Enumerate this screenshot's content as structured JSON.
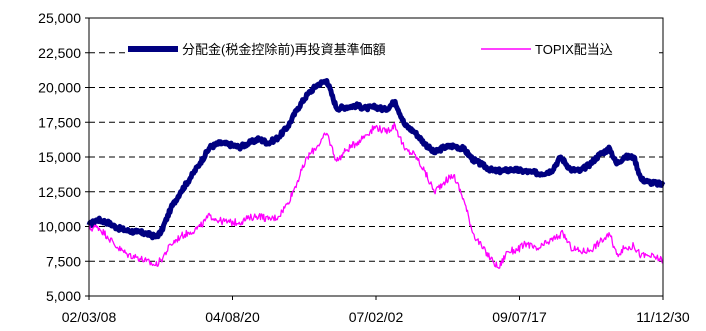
{
  "chart_data": {
    "type": "line",
    "ylim": [
      5000,
      25000
    ],
    "y_ticks": [
      "5,000",
      "7,500",
      "10,000",
      "12,500",
      "15,000",
      "17,500",
      "20,000",
      "22,500",
      "25,000"
    ],
    "y_tick_values": [
      5000,
      7500,
      10000,
      12500,
      15000,
      17500,
      20000,
      22500,
      25000
    ],
    "x_ticks": [
      "02/03/08",
      "04/08/20",
      "07/02/02",
      "09/07/17",
      "11/12/30"
    ],
    "xlim": [
      "2002-03-08",
      "2011-12-30"
    ],
    "grid": "horizontal dashed",
    "legend_position": "top",
    "series": [
      {
        "name": "分配金(税金控除前)再投資基準価額",
        "color": "#000080",
        "points": [
          [
            "2002-03-08",
            10100
          ],
          [
            "2002-05-01",
            10500
          ],
          [
            "2002-07-01",
            10300
          ],
          [
            "2002-09-01",
            9900
          ],
          [
            "2002-11-01",
            9700
          ],
          [
            "2003-01-01",
            9600
          ],
          [
            "2003-03-01",
            9500
          ],
          [
            "2003-04-28",
            9250
          ],
          [
            "2003-06-01",
            9600
          ],
          [
            "2003-08-01",
            11300
          ],
          [
            "2003-10-01",
            12500
          ],
          [
            "2003-12-01",
            13500
          ],
          [
            "2004-02-01",
            14600
          ],
          [
            "2004-04-01",
            15700
          ],
          [
            "2004-06-01",
            16000
          ],
          [
            "2004-08-01",
            15900
          ],
          [
            "2004-10-01",
            15700
          ],
          [
            "2004-12-01",
            16000
          ],
          [
            "2005-02-01",
            16300
          ],
          [
            "2005-04-01",
            16000
          ],
          [
            "2005-06-01",
            16400
          ],
          [
            "2005-08-01",
            17200
          ],
          [
            "2005-10-01",
            18500
          ],
          [
            "2005-12-01",
            19500
          ],
          [
            "2006-02-01",
            20200
          ],
          [
            "2006-04-01",
            20500
          ],
          [
            "2006-06-01",
            18500
          ],
          [
            "2006-08-01",
            18600
          ],
          [
            "2006-10-01",
            18700
          ],
          [
            "2006-12-01",
            18500
          ],
          [
            "2007-02-01",
            18600
          ],
          [
            "2007-04-01",
            18400
          ],
          [
            "2007-06-01",
            19000
          ],
          [
            "2007-08-01",
            17300
          ],
          [
            "2007-10-01",
            16800
          ],
          [
            "2007-12-01",
            16000
          ],
          [
            "2008-02-01",
            15300
          ],
          [
            "2008-04-01",
            15700
          ],
          [
            "2008-06-01",
            15800
          ],
          [
            "2008-08-01",
            15600
          ],
          [
            "2008-10-01",
            14800
          ],
          [
            "2008-12-01",
            14400
          ],
          [
            "2009-02-01",
            14000
          ],
          [
            "2009-04-01",
            14000
          ],
          [
            "2009-06-01",
            14100
          ],
          [
            "2009-08-01",
            14000
          ],
          [
            "2009-10-01",
            13900
          ],
          [
            "2009-12-01",
            13800
          ],
          [
            "2010-02-01",
            14000
          ],
          [
            "2010-04-01",
            15000
          ],
          [
            "2010-06-01",
            14100
          ],
          [
            "2010-08-01",
            14000
          ],
          [
            "2010-10-01",
            14500
          ],
          [
            "2010-12-01",
            15200
          ],
          [
            "2011-02-01",
            15600
          ],
          [
            "2011-03-15",
            14500
          ],
          [
            "2011-05-01",
            15000
          ],
          [
            "2011-07-01",
            15000
          ],
          [
            "2011-08-15",
            13400
          ],
          [
            "2011-10-01",
            13200
          ],
          [
            "2011-12-30",
            13000
          ]
        ]
      },
      {
        "name": "TOPIX配当込",
        "color": "#ff00ff",
        "points": [
          [
            "2002-03-08",
            9800
          ],
          [
            "2002-05-01",
            10000
          ],
          [
            "2002-07-01",
            9300
          ],
          [
            "2002-09-01",
            8500
          ],
          [
            "2002-11-01",
            8000
          ],
          [
            "2003-01-01",
            7800
          ],
          [
            "2003-03-01",
            7500
          ],
          [
            "2003-04-28",
            7200
          ],
          [
            "2003-06-01",
            7600
          ],
          [
            "2003-08-01",
            8700
          ],
          [
            "2003-10-01",
            9300
          ],
          [
            "2003-12-01",
            9600
          ],
          [
            "2004-02-01",
            10000
          ],
          [
            "2004-04-01",
            10800
          ],
          [
            "2004-06-01",
            10400
          ],
          [
            "2004-08-01",
            10300
          ],
          [
            "2004-10-01",
            10300
          ],
          [
            "2004-12-01",
            10600
          ],
          [
            "2005-02-01",
            10800
          ],
          [
            "2005-04-01",
            10500
          ],
          [
            "2005-06-01",
            10700
          ],
          [
            "2005-08-01",
            11700
          ],
          [
            "2005-10-01",
            13300
          ],
          [
            "2005-12-01",
            15000
          ],
          [
            "2006-02-01",
            15800
          ],
          [
            "2006-04-01",
            16700
          ],
          [
            "2006-06-01",
            14700
          ],
          [
            "2006-08-01",
            15500
          ],
          [
            "2006-10-01",
            16000
          ],
          [
            "2006-12-01",
            16600
          ],
          [
            "2007-02-01",
            17200
          ],
          [
            "2007-04-01",
            16800
          ],
          [
            "2007-06-01",
            17300
          ],
          [
            "2007-08-01",
            15500
          ],
          [
            "2007-10-01",
            15200
          ],
          [
            "2007-12-01",
            14000
          ],
          [
            "2008-02-01",
            12500
          ],
          [
            "2008-04-01",
            13200
          ],
          [
            "2008-06-01",
            13700
          ],
          [
            "2008-08-01",
            12000
          ],
          [
            "2008-10-01",
            9500
          ],
          [
            "2008-12-01",
            8400
          ],
          [
            "2009-02-01",
            7500
          ],
          [
            "2009-03-10",
            7000
          ],
          [
            "2009-05-01",
            8200
          ],
          [
            "2009-07-01",
            8300
          ],
          [
            "2009-09-01",
            8800
          ],
          [
            "2009-11-01",
            8300
          ],
          [
            "2010-01-01",
            8800
          ],
          [
            "2010-03-01",
            9200
          ],
          [
            "2010-04-15",
            9500
          ],
          [
            "2010-06-01",
            8500
          ],
          [
            "2010-08-01",
            8200
          ],
          [
            "2010-10-01",
            8300
          ],
          [
            "2010-12-01",
            8900
          ],
          [
            "2011-02-01",
            9400
          ],
          [
            "2011-03-15",
            8000
          ],
          [
            "2011-05-01",
            8400
          ],
          [
            "2011-07-01",
            8600
          ],
          [
            "2011-08-15",
            7900
          ],
          [
            "2011-10-01",
            7900
          ],
          [
            "2011-12-30",
            7600
          ]
        ]
      }
    ]
  }
}
